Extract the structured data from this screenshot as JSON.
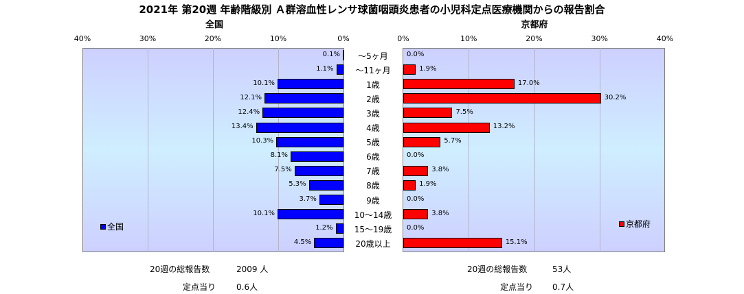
{
  "chart_data": {
    "type": "bar",
    "title": "2021年 第20週 年齢階級別 Ａ群溶血性レンサ球菌咽頭炎患者の小児科定点医療機関からの報告割合",
    "categories": [
      "～5ヶ月",
      "～11ヶ月",
      "1歳",
      "2歳",
      "3歳",
      "4歳",
      "5歳",
      "6歳",
      "7歳",
      "8歳",
      "9歳",
      "10～14歳",
      "15～19歳",
      "20歳以上"
    ],
    "series": [
      {
        "name": "全国",
        "values": [
          0.1,
          1.1,
          10.1,
          12.1,
          12.4,
          13.4,
          10.3,
          8.1,
          7.5,
          5.3,
          3.7,
          10.1,
          1.2,
          4.5
        ],
        "labels": [
          "0.1%",
          "1.1%",
          "10.1%",
          "12.1%",
          "12.4%",
          "13.4%",
          "10.3%",
          "8.1%",
          "7.5%",
          "5.3%",
          "3.7%",
          "10.1%",
          "1.2%",
          "4.5%"
        ]
      },
      {
        "name": "京都府",
        "values": [
          0.0,
          1.9,
          17.0,
          30.2,
          7.5,
          13.2,
          5.7,
          0.0,
          3.8,
          1.9,
          0.0,
          3.8,
          0.0,
          15.1
        ],
        "labels": [
          "0.0%",
          "1.9%",
          "17.0%",
          "30.2%",
          "7.5%",
          "13.2%",
          "5.7%",
          "0.0%",
          "3.8%",
          "1.9%",
          "0.0%",
          "3.8%",
          "0.0%",
          "15.1%"
        ]
      }
    ],
    "xlim": [
      0,
      40
    ],
    "tick_labels": [
      "0%",
      "10%",
      "20%",
      "30%",
      "40%"
    ],
    "subtitles": {
      "left": "全国",
      "right": "京都府"
    },
    "grid": true,
    "colors": {
      "left": "#0000ff",
      "right": "#ff0000"
    }
  },
  "footer": {
    "left": {
      "total_label": "20週の総報告数",
      "total_value": "2009 人",
      "per_label": "定点当り",
      "per_value": "0.6人"
    },
    "right": {
      "total_label": "20週の総報告数",
      "total_value": "53人",
      "per_label": "定点当り",
      "per_value": "0.7人"
    }
  }
}
